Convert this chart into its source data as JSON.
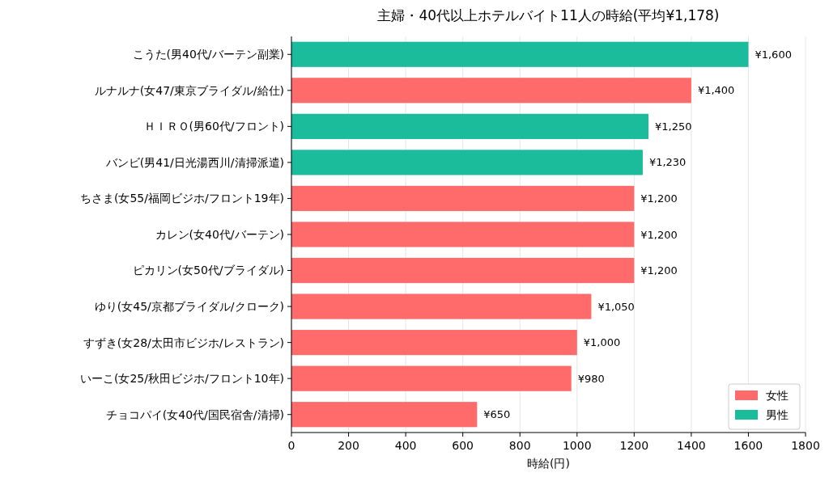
{
  "chart_data": {
    "type": "bar",
    "orientation": "horizontal",
    "title": "主婦・40代以上ホテルバイト11人の時給(平均¥1,178)",
    "xlabel": "時給(円)",
    "categories": [
      "こうた(男40代/バーテン副業)",
      "ルナルナ(女47/東京ブライダル/給仕)",
      "ＨＩＲＯ(男60代/フロント)",
      "バンビ(男41/日光湯西川/清掃派遣)",
      "ちさま(女55/福岡ビジホ/フロント19年)",
      "カレン(女40代/バーテン)",
      "ピカリン(女50代/ブライダル)",
      "ゆり(女45/京都ブライダル/クローク)",
      "すずき(女28/太田市ビジホ/レストラン)",
      "いーこ(女25/秋田ビジホ/フロント10年)",
      "チョコパイ(女40代/国民宿舎/清掃)"
    ],
    "series": [
      {
        "name": "女性",
        "color": "#ff6b6b",
        "values": [
          null,
          1400,
          null,
          null,
          1200,
          1200,
          1200,
          1050,
          1000,
          980,
          650
        ],
        "value_labels": [
          null,
          "¥1,400",
          null,
          null,
          "¥1,200",
          "¥1,200",
          "¥1,200",
          "¥1,050",
          "¥1,000",
          "¥980",
          "¥650"
        ]
      },
      {
        "name": "男性",
        "color": "#1abc9c",
        "values": [
          1600,
          null,
          1250,
          1230,
          null,
          null,
          null,
          null,
          null,
          null,
          null
        ],
        "value_labels": [
          "¥1,600",
          null,
          "¥1,250",
          "¥1,230",
          null,
          null,
          null,
          null,
          null,
          null,
          null
        ]
      }
    ],
    "xlim": [
      0,
      1800
    ],
    "xticks": [
      0,
      200,
      400,
      600,
      800,
      1000,
      1200,
      1400,
      1600,
      1800
    ],
    "grid": "x",
    "legend": "bottom right"
  }
}
